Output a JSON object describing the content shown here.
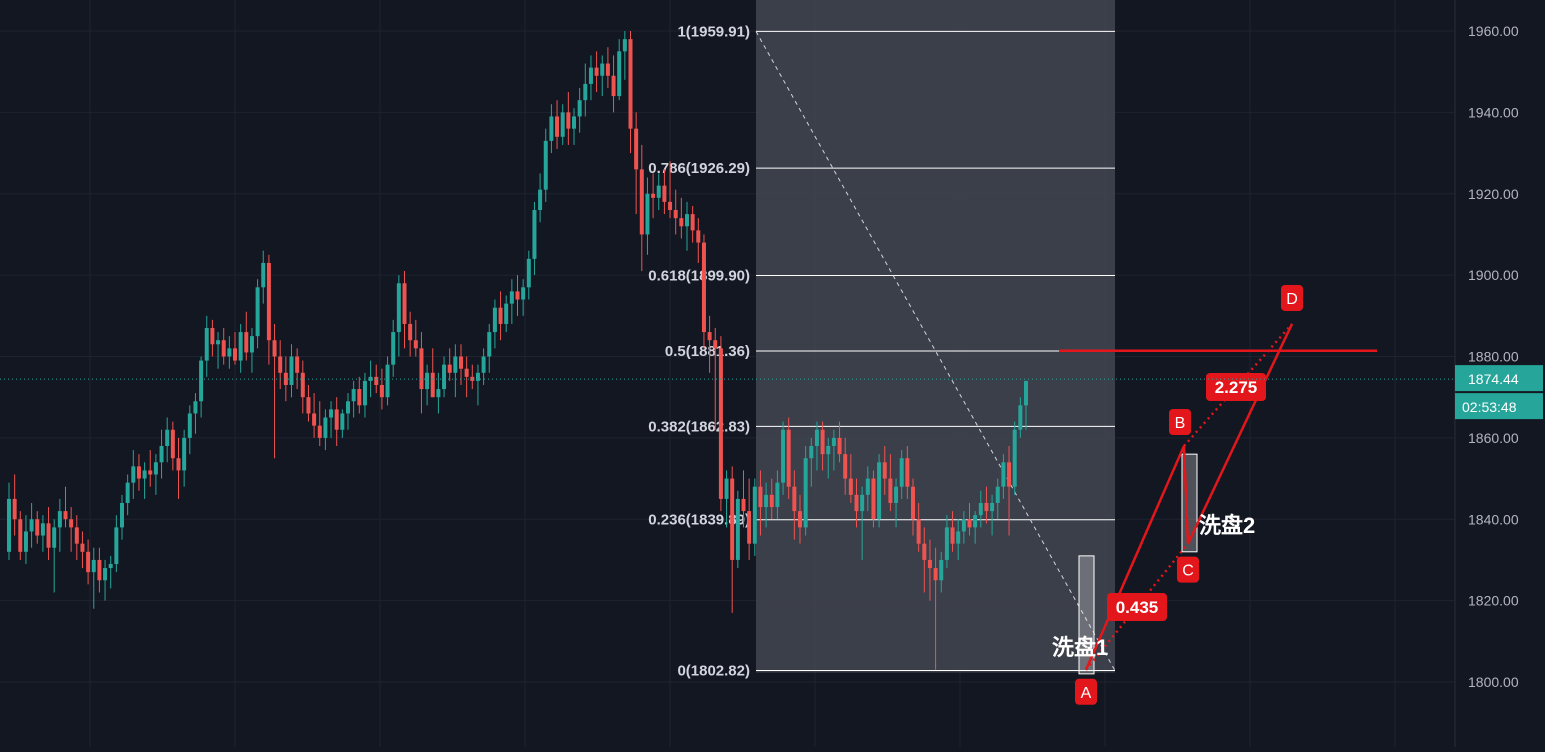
{
  "theme": {
    "background": "#131722",
    "grid": "#1f2330",
    "up": "#26a69a",
    "down": "#ef5350",
    "fib_zone": "#434651",
    "fib_line": "#ffffff",
    "abcd": "#e3171b",
    "price_badge": "#26a69a",
    "axis_text": "#b2b5be"
  },
  "price_axis": {
    "ticks": [
      "1960.00",
      "1940.00",
      "1920.00",
      "1900.00",
      "1880.00",
      "1860.00",
      "1840.00",
      "1820.00",
      "1800.00"
    ],
    "current_price": "1874.44",
    "countdown": "02:53:48"
  },
  "fib_levels": [
    {
      "label": "1(1959.91)",
      "value": 1959.91
    },
    {
      "label": "0.786(1926.29)",
      "value": 1926.29
    },
    {
      "label": "0.618(1899.90)",
      "value": 1899.9
    },
    {
      "label": "0.5(1881.36)",
      "value": 1881.36
    },
    {
      "label": "0.382(1862.83)",
      "value": 1862.83
    },
    {
      "label": "0.236(1839.89)",
      "value": 1839.89
    },
    {
      "label": "0(1802.82)",
      "value": 1802.82
    }
  ],
  "abcd_pattern": {
    "points": [
      {
        "label": "A",
        "price": 1803
      },
      {
        "label": "B",
        "price": 1858
      },
      {
        "label": "C",
        "price": 1834
      },
      {
        "label": "D",
        "price": 1888
      }
    ],
    "ratio_bc": "0.435",
    "ratio_cd": "2.275",
    "target_line_price": 1881.4
  },
  "annotations": {
    "wash1": "洗盘1",
    "wash2": "洗盘2"
  },
  "chart_data": {
    "type": "candlestick",
    "title": "",
    "xlabel": "",
    "ylabel": "",
    "ylim": [
      1795,
      1970
    ],
    "grid": true,
    "candles_ohlc": [
      [
        1832,
        1849,
        1830,
        1845
      ],
      [
        1845,
        1851,
        1836,
        1840
      ],
      [
        1840,
        1842,
        1830,
        1832
      ],
      [
        1832,
        1841,
        1829,
        1837
      ],
      [
        1837,
        1844,
        1833,
        1840
      ],
      [
        1840,
        1842,
        1834,
        1836
      ],
      [
        1836,
        1841,
        1832,
        1839
      ],
      [
        1839,
        1843,
        1830,
        1833
      ],
      [
        1833,
        1840,
        1822,
        1838
      ],
      [
        1838,
        1845,
        1832,
        1842
      ],
      [
        1842,
        1848,
        1838,
        1840
      ],
      [
        1840,
        1843,
        1832,
        1838
      ],
      [
        1838,
        1841,
        1830,
        1834
      ],
      [
        1834,
        1837,
        1828,
        1832
      ],
      [
        1832,
        1835,
        1824,
        1827
      ],
      [
        1827,
        1833,
        1818,
        1830
      ],
      [
        1830,
        1833,
        1822,
        1825
      ],
      [
        1825,
        1830,
        1820,
        1828
      ],
      [
        1828,
        1831,
        1823,
        1829
      ],
      [
        1829,
        1841,
        1827,
        1838
      ],
      [
        1838,
        1846,
        1835,
        1844
      ],
      [
        1844,
        1851,
        1841,
        1849
      ],
      [
        1849,
        1857,
        1845,
        1853
      ],
      [
        1853,
        1856,
        1847,
        1850
      ],
      [
        1850,
        1854,
        1845,
        1852
      ],
      [
        1852,
        1857,
        1848,
        1851
      ],
      [
        1851,
        1856,
        1846,
        1854
      ],
      [
        1854,
        1862,
        1850,
        1858
      ],
      [
        1858,
        1865,
        1854,
        1862
      ],
      [
        1862,
        1864,
        1852,
        1855
      ],
      [
        1855,
        1860,
        1845,
        1852
      ],
      [
        1852,
        1862,
        1848,
        1860
      ],
      [
        1860,
        1868,
        1856,
        1866
      ],
      [
        1866,
        1871,
        1861,
        1869
      ],
      [
        1869,
        1880,
        1865,
        1879
      ],
      [
        1879,
        1890,
        1875,
        1887
      ],
      [
        1887,
        1889,
        1880,
        1883
      ],
      [
        1883,
        1886,
        1877,
        1884
      ],
      [
        1884,
        1887,
        1878,
        1880
      ],
      [
        1880,
        1885,
        1877,
        1882
      ],
      [
        1882,
        1886,
        1878,
        1879
      ],
      [
        1879,
        1888,
        1876,
        1886
      ],
      [
        1886,
        1891,
        1879,
        1881
      ],
      [
        1881,
        1887,
        1876,
        1885
      ],
      [
        1885,
        1899,
        1882,
        1897
      ],
      [
        1897,
        1906,
        1893,
        1903
      ],
      [
        1903,
        1905,
        1878,
        1884
      ],
      [
        1884,
        1888,
        1855,
        1880
      ],
      [
        1880,
        1884,
        1872,
        1876
      ],
      [
        1876,
        1880,
        1869,
        1873
      ],
      [
        1873,
        1883,
        1870,
        1880
      ],
      [
        1880,
        1882,
        1872,
        1876
      ],
      [
        1876,
        1879,
        1866,
        1870
      ],
      [
        1870,
        1873,
        1864,
        1866
      ],
      [
        1866,
        1871,
        1860,
        1863
      ],
      [
        1863,
        1869,
        1858,
        1860
      ],
      [
        1860,
        1867,
        1857,
        1865
      ],
      [
        1865,
        1869,
        1860,
        1867
      ],
      [
        1867,
        1870,
        1858,
        1862
      ],
      [
        1862,
        1867,
        1860,
        1866
      ],
      [
        1866,
        1871,
        1862,
        1869
      ],
      [
        1869,
        1874,
        1865,
        1872
      ],
      [
        1872,
        1875,
        1866,
        1868
      ],
      [
        1868,
        1876,
        1865,
        1874
      ],
      [
        1874,
        1879,
        1870,
        1875
      ],
      [
        1875,
        1878,
        1871,
        1873
      ],
      [
        1873,
        1877,
        1867,
        1870
      ],
      [
        1870,
        1880,
        1868,
        1878
      ],
      [
        1878,
        1889,
        1875,
        1886
      ],
      [
        1886,
        1900,
        1880,
        1898
      ],
      [
        1898,
        1901,
        1882,
        1888
      ],
      [
        1888,
        1891,
        1880,
        1884
      ],
      [
        1884,
        1889,
        1880,
        1882
      ],
      [
        1882,
        1886,
        1866,
        1872
      ],
      [
        1872,
        1878,
        1868,
        1876
      ],
      [
        1876,
        1882,
        1870,
        1870
      ],
      [
        1870,
        1876,
        1866,
        1872
      ],
      [
        1872,
        1880,
        1870,
        1878
      ],
      [
        1878,
        1882,
        1874,
        1876
      ],
      [
        1876,
        1883,
        1870,
        1880
      ],
      [
        1880,
        1883,
        1873,
        1877
      ],
      [
        1877,
        1880,
        1870,
        1875
      ],
      [
        1875,
        1878,
        1872,
        1874
      ],
      [
        1874,
        1878,
        1868,
        1876
      ],
      [
        1876,
        1882,
        1873,
        1880
      ],
      [
        1880,
        1888,
        1876,
        1886
      ],
      [
        1886,
        1894,
        1882,
        1892
      ],
      [
        1892,
        1896,
        1884,
        1888
      ],
      [
        1888,
        1895,
        1886,
        1893
      ],
      [
        1893,
        1899,
        1888,
        1896
      ],
      [
        1896,
        1900,
        1890,
        1894
      ],
      [
        1894,
        1899,
        1890,
        1897
      ],
      [
        1897,
        1906,
        1894,
        1904
      ],
      [
        1904,
        1918,
        1900,
        1916
      ],
      [
        1916,
        1925,
        1913,
        1921
      ],
      [
        1921,
        1936,
        1918,
        1933
      ],
      [
        1933,
        1942,
        1930,
        1939
      ],
      [
        1939,
        1943,
        1931,
        1934
      ],
      [
        1934,
        1942,
        1932,
        1940
      ],
      [
        1940,
        1945,
        1932,
        1936
      ],
      [
        1936,
        1941,
        1932,
        1939
      ],
      [
        1939,
        1946,
        1935,
        1943
      ],
      [
        1943,
        1952,
        1939,
        1947
      ],
      [
        1947,
        1954,
        1943,
        1951
      ],
      [
        1951,
        1955,
        1945,
        1949
      ],
      [
        1949,
        1954,
        1944,
        1952
      ],
      [
        1952,
        1956,
        1946,
        1949
      ],
      [
        1949,
        1954,
        1940,
        1944
      ],
      [
        1944,
        1958,
        1943,
        1955
      ],
      [
        1955,
        1960,
        1948,
        1958
      ],
      [
        1958,
        1960,
        1930,
        1936
      ],
      [
        1936,
        1940,
        1915,
        1926
      ],
      [
        1926,
        1932,
        1901,
        1910
      ],
      [
        1910,
        1924,
        1905,
        1920
      ],
      [
        1920,
        1925,
        1914,
        1919
      ],
      [
        1919,
        1925,
        1916,
        1922
      ],
      [
        1922,
        1926,
        1915,
        1918
      ],
      [
        1918,
        1928,
        1914,
        1916
      ],
      [
        1916,
        1921,
        1910,
        1914
      ],
      [
        1914,
        1919,
        1909,
        1912
      ],
      [
        1912,
        1918,
        1906,
        1915
      ],
      [
        1915,
        1917,
        1908,
        1911
      ],
      [
        1911,
        1914,
        1903,
        1908
      ],
      [
        1908,
        1910,
        1882,
        1886
      ],
      [
        1886,
        1890,
        1876,
        1884
      ],
      [
        1884,
        1887,
        1862,
        1882
      ],
      [
        1882,
        1885,
        1842,
        1845
      ],
      [
        1845,
        1852,
        1838,
        1850
      ],
      [
        1850,
        1853,
        1817,
        1830
      ],
      [
        1830,
        1847,
        1828,
        1845
      ],
      [
        1845,
        1852,
        1838,
        1842
      ],
      [
        1842,
        1850,
        1830,
        1834
      ],
      [
        1834,
        1850,
        1831,
        1848
      ],
      [
        1848,
        1852,
        1836,
        1843
      ],
      [
        1843,
        1849,
        1838,
        1846
      ],
      [
        1846,
        1850,
        1840,
        1843
      ],
      [
        1843,
        1852,
        1840,
        1849
      ],
      [
        1849,
        1864,
        1846,
        1862
      ],
      [
        1862,
        1865,
        1845,
        1848
      ],
      [
        1848,
        1852,
        1835,
        1842
      ],
      [
        1842,
        1846,
        1834,
        1838
      ],
      [
        1838,
        1858,
        1836,
        1855
      ],
      [
        1855,
        1860,
        1848,
        1858
      ],
      [
        1858,
        1864,
        1852,
        1862
      ],
      [
        1862,
        1864,
        1852,
        1856
      ],
      [
        1856,
        1860,
        1850,
        1858
      ],
      [
        1858,
        1862,
        1852,
        1860
      ],
      [
        1860,
        1864,
        1854,
        1856
      ],
      [
        1856,
        1860,
        1846,
        1850
      ],
      [
        1850,
        1856,
        1844,
        1846
      ],
      [
        1846,
        1850,
        1838,
        1842
      ],
      [
        1842,
        1848,
        1830,
        1846
      ],
      [
        1846,
        1853,
        1842,
        1850
      ],
      [
        1850,
        1852,
        1838,
        1840
      ],
      [
        1840,
        1856,
        1838,
        1854
      ],
      [
        1854,
        1858,
        1846,
        1850
      ],
      [
        1850,
        1856,
        1842,
        1844
      ],
      [
        1844,
        1850,
        1838,
        1848
      ],
      [
        1848,
        1857,
        1845,
        1855
      ],
      [
        1855,
        1858,
        1845,
        1848
      ],
      [
        1848,
        1850,
        1836,
        1840
      ],
      [
        1840,
        1844,
        1832,
        1834
      ],
      [
        1834,
        1838,
        1822,
        1830
      ],
      [
        1830,
        1835,
        1820,
        1828
      ],
      [
        1828,
        1833,
        1803,
        1825
      ],
      [
        1825,
        1832,
        1822,
        1830
      ],
      [
        1830,
        1841,
        1828,
        1838
      ],
      [
        1838,
        1842,
        1832,
        1834
      ],
      [
        1834,
        1840,
        1830,
        1837
      ],
      [
        1837,
        1842,
        1834,
        1840
      ],
      [
        1840,
        1844,
        1836,
        1838
      ],
      [
        1838,
        1842,
        1834,
        1841
      ],
      [
        1841,
        1847,
        1838,
        1844
      ],
      [
        1844,
        1848,
        1839,
        1842
      ],
      [
        1842,
        1846,
        1836,
        1844
      ],
      [
        1844,
        1850,
        1840,
        1848
      ],
      [
        1848,
        1856,
        1845,
        1854
      ],
      [
        1854,
        1858,
        1836,
        1848
      ],
      [
        1848,
        1864,
        1846,
        1862
      ],
      [
        1862,
        1870,
        1860,
        1868
      ],
      [
        1868,
        1874,
        1862,
        1874
      ]
    ]
  }
}
